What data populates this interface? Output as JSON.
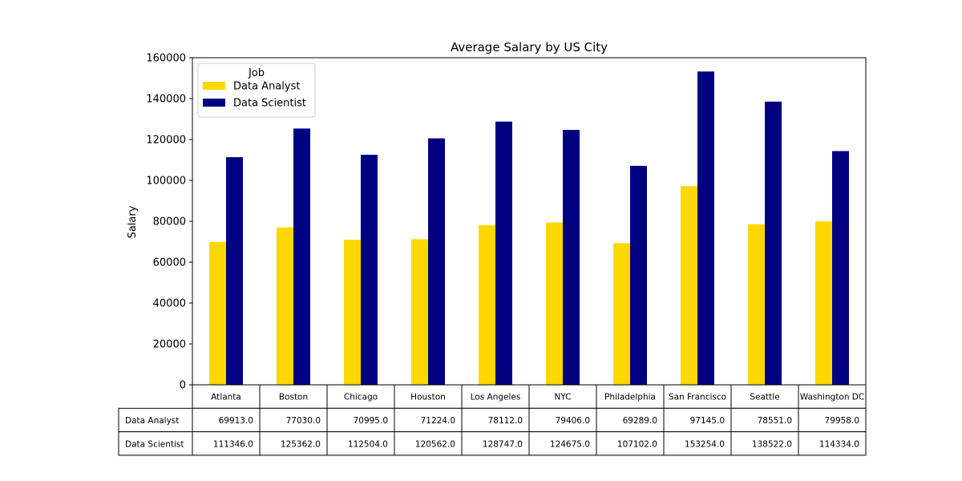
{
  "chart_data": {
    "type": "bar",
    "title": "Average Salary by US City",
    "xlabel": "",
    "ylabel": "Salary",
    "ylim": [
      0,
      160000
    ],
    "yticks": [
      0,
      20000,
      40000,
      60000,
      80000,
      100000,
      120000,
      140000,
      160000
    ],
    "grid": false,
    "legend": {
      "title": "Job",
      "placement": "top-left"
    },
    "categories": [
      "Atlanta",
      "Boston",
      "Chicago",
      "Houston",
      "Los Angeles",
      "NYC",
      "Philadelphia",
      "San Francisco",
      "Seattle",
      "Washington DC"
    ],
    "series": [
      {
        "name": "Data Analyst",
        "color": "#FFD700",
        "values": [
          69913.0,
          77030.0,
          70995.0,
          71224.0,
          78112.0,
          79406.0,
          69289.0,
          97145.0,
          78551.0,
          79958.0
        ],
        "table_values": [
          "69913.0",
          "77030.0",
          "70995.0",
          "71224.0",
          "78112.0",
          "79406.0",
          "69289.0",
          "97145.0",
          "78551.0",
          "79958.0"
        ]
      },
      {
        "name": "Data Scientist",
        "color": "#000080",
        "values": [
          111346.0,
          125362.0,
          112504.0,
          120562.0,
          128747.0,
          124675.0,
          107102.0,
          153254.0,
          138522.0,
          114334.0
        ],
        "table_values": [
          "111346.0",
          "125362.0",
          "112504.0",
          "120562.0",
          "128747.0",
          "124675.0",
          "107102.0",
          "153254.0",
          "138522.0",
          "114334.0"
        ]
      }
    ]
  }
}
